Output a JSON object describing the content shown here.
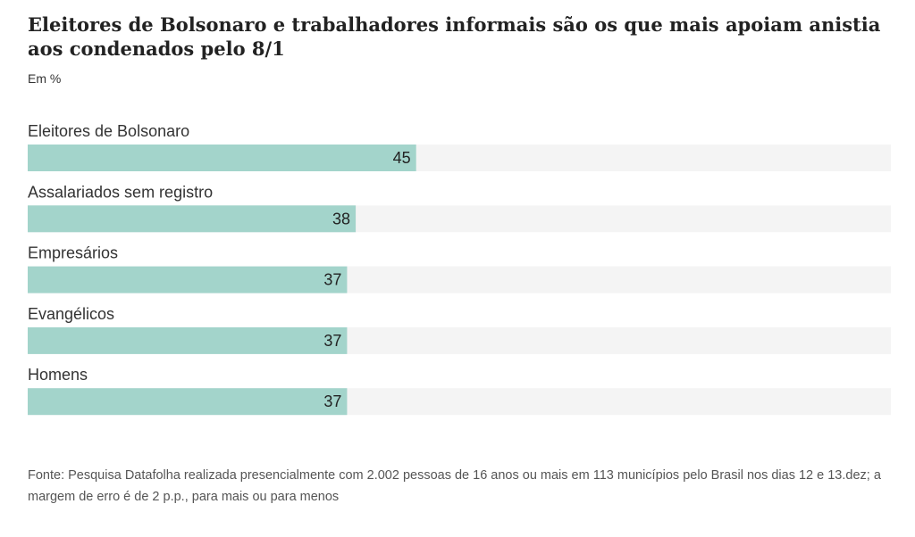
{
  "chart_data": {
    "type": "bar",
    "orientation": "horizontal",
    "title": "Eleitores de Bolsonaro e trabalhadores informais são os que mais apoiam anistia aos condenados pelo 8/1",
    "subtitle": "Em %",
    "categories": [
      "Eleitores de Bolsonaro",
      "Assalariados sem registro",
      "Empresários",
      "Evangélicos",
      "Homens"
    ],
    "values": [
      45,
      38,
      37,
      37,
      37
    ],
    "value_labels": [
      "45",
      "38",
      "37",
      "37",
      "37"
    ],
    "xlim": [
      0,
      100
    ],
    "grid": false,
    "legend": "none",
    "colors": {
      "bar": "#a3d4cb",
      "track": "#f4f4f4",
      "label": "#333333",
      "value": "#222222"
    }
  },
  "source": "Fonte: Pesquisa Datafolha realizada presencialmente com 2.002 pessoas de 16 anos ou mais em 113 municípios pelo Brasil nos dias 12 e 13.dez; a margem de erro é de 2 p.p., para mais ou para menos"
}
